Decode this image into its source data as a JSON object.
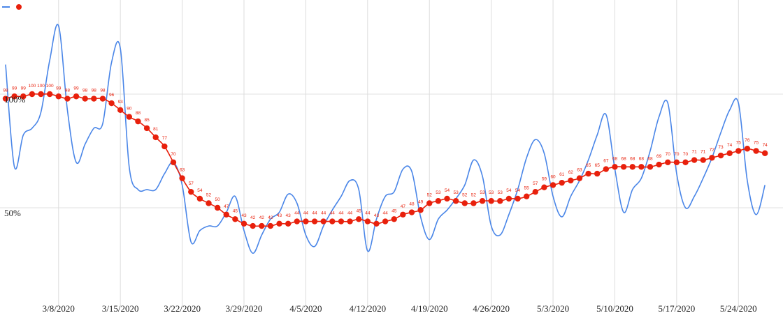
{
  "chart_data": {
    "type": "line",
    "ylabel": "",
    "xlabel": "",
    "y_ticks": [
      {
        "label": "100%",
        "value": 100
      },
      {
        "label": "50%",
        "value": 50
      }
    ],
    "x_ticks": [
      "3/8/2020",
      "3/15/2020",
      "3/22/2020",
      "3/29/2020",
      "4/5/2020",
      "4/12/2020",
      "4/19/2020",
      "4/26/2020",
      "5/3/2020",
      "5/10/2020",
      "5/17/2020",
      "5/24/2020"
    ],
    "x_tick_index": [
      6,
      13,
      20,
      27,
      34,
      41,
      48,
      55,
      62,
      69,
      76,
      83
    ],
    "grid": true,
    "legend": "top-left",
    "colors": {
      "daily": "#4a86e8",
      "average": "#e8200c",
      "grid": "#e0e0e0",
      "vgrid": "#dddddd"
    },
    "series": [
      {
        "name": "",
        "role": "daily",
        "values": [
          113,
          68,
          82,
          85,
          92,
          115,
          130,
          93,
          70,
          78,
          85,
          87,
          114,
          120,
          68,
          58,
          58,
          58,
          65,
          70,
          60,
          35,
          40,
          42,
          42,
          48,
          55,
          40,
          30,
          38,
          45,
          48,
          56,
          52,
          38,
          33,
          42,
          49,
          55,
          62,
          58,
          31,
          45,
          55,
          57,
          67,
          66,
          46,
          36,
          45,
          49,
          54,
          60,
          71,
          64,
          42,
          38,
          47,
          58,
          72,
          80,
          74,
          55,
          46,
          55,
          62,
          71,
          82,
          91,
          67,
          48,
          58,
          63,
          75,
          90,
          96,
          65,
          50,
          55,
          63,
          72,
          83,
          93,
          96,
          62,
          47,
          60
        ]
      },
      {
        "name": "",
        "role": "7-day average",
        "values": [
          98,
          99,
          99,
          100,
          100,
          100,
          99,
          98,
          99,
          98,
          98,
          98,
          96,
          93,
          90,
          88,
          85,
          81,
          77,
          70,
          63,
          57,
          54,
          52,
          50,
          47,
          45,
          43,
          42,
          42,
          42,
          43,
          43,
          44,
          44,
          44,
          44,
          44,
          44,
          44,
          45,
          44,
          43,
          44,
          45,
          47,
          48,
          49,
          52,
          53,
          54,
          53,
          52,
          52,
          53,
          53,
          53,
          54,
          54,
          55,
          57,
          59,
          60,
          61,
          62,
          63,
          65,
          65,
          67,
          68,
          68,
          68,
          68,
          68,
          69,
          70,
          70,
          70,
          71,
          71,
          72,
          73,
          74,
          75,
          76,
          75,
          74
        ]
      }
    ]
  }
}
